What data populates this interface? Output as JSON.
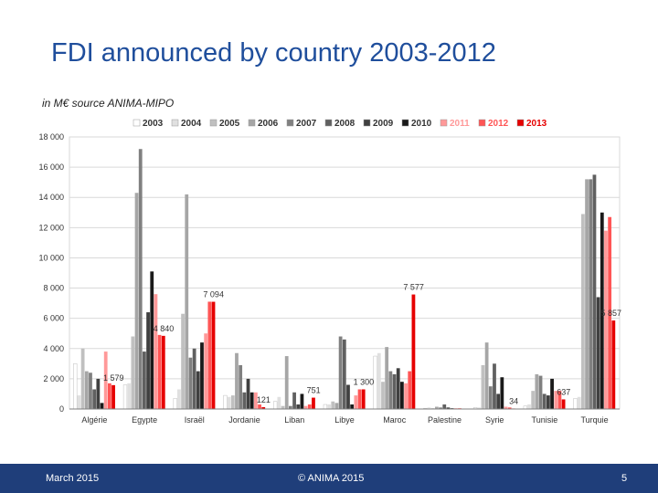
{
  "slide": {
    "title": "FDI announced by country 2003-2012",
    "subtitle": "in M€ source ANIMA-MIPO"
  },
  "footer": {
    "date": "March 2015",
    "copyright": "© ANIMA 2015",
    "page_number": "5"
  },
  "chart_data": {
    "type": "bar",
    "title": "",
    "xlabel": "",
    "ylabel": "",
    "ylim": [
      0,
      18000
    ],
    "yticks": [
      0,
      2000,
      4000,
      6000,
      8000,
      10000,
      12000,
      14000,
      16000,
      18000
    ],
    "ytick_labels": [
      "0",
      "2 000",
      "4 000",
      "6 000",
      "8 000",
      "10 000",
      "12 000",
      "14 000",
      "16 000",
      "18 000"
    ],
    "grid": true,
    "legend": "top",
    "categories": [
      "Algérie",
      "Egypte",
      "Israël",
      "Jordanie",
      "Liban",
      "Libye",
      "Maroc",
      "Palestine",
      "Syrie",
      "Tunisie",
      "Turquie"
    ],
    "series": [
      {
        "name": "2003",
        "color": "#ffffff",
        "values": [
          3000,
          1600,
          700,
          900,
          500,
          300,
          3500,
          50,
          100,
          200,
          700
        ]
      },
      {
        "name": "2004",
        "color": "#e0e0e0",
        "values": [
          900,
          1700,
          1300,
          800,
          800,
          300,
          3700,
          100,
          100,
          300,
          800
        ]
      },
      {
        "name": "2005",
        "color": "#c0c0c0",
        "values": [
          4000,
          4800,
          6300,
          900,
          200,
          500,
          1800,
          50,
          2900,
          1200,
          12900
        ]
      },
      {
        "name": "2006",
        "color": "#a6a6a6",
        "values": [
          2500,
          14300,
          14200,
          3700,
          3500,
          400,
          4100,
          150,
          4400,
          2300,
          15200
        ]
      },
      {
        "name": "2007",
        "color": "#808080",
        "values": [
          2400,
          17200,
          3400,
          2900,
          200,
          4800,
          2500,
          100,
          1500,
          2200,
          15200
        ]
      },
      {
        "name": "2008",
        "color": "#606060",
        "values": [
          1300,
          3800,
          4000,
          1100,
          1100,
          4600,
          2300,
          300,
          3000,
          1000,
          15500
        ]
      },
      {
        "name": "2009",
        "color": "#404040",
        "values": [
          2000,
          6400,
          2500,
          2000,
          300,
          1600,
          2700,
          100,
          1000,
          900,
          7400
        ]
      },
      {
        "name": "2010",
        "color": "#1a1a1a",
        "values": [
          400,
          9100,
          4400,
          1100,
          1000,
          300,
          1800,
          50,
          2100,
          2000,
          13000
        ]
      },
      {
        "name": "2011",
        "color": "#ff9999",
        "values": [
          3800,
          7600,
          5000,
          1100,
          200,
          900,
          1700,
          50,
          150,
          1200,
          11800
        ]
      },
      {
        "name": "2012",
        "color": "#ff5555",
        "values": [
          1700,
          4900,
          7100,
          300,
          300,
          1300,
          2500,
          50,
          100,
          1200,
          12700
        ]
      },
      {
        "name": "2013",
        "color": "#e60000",
        "values": [
          1579,
          4840,
          7094,
          121,
          751,
          1300,
          7577,
          0,
          34,
          637,
          5857
        ]
      }
    ],
    "annotations": [
      {
        "category": "Algérie",
        "series": "2013",
        "text": "1 579"
      },
      {
        "category": "Egypte",
        "series": "2013",
        "text": "4 840"
      },
      {
        "category": "Israël",
        "series": "2013",
        "text": "7 094"
      },
      {
        "category": "Jordanie",
        "series": "2013",
        "text": "121"
      },
      {
        "category": "Liban",
        "series": "2013",
        "text": "751"
      },
      {
        "category": "Libye",
        "series": "2013",
        "text": "1 300"
      },
      {
        "category": "Maroc",
        "series": "2013",
        "text": "7 577"
      },
      {
        "category": "Syrie",
        "series": "2013",
        "text": "34"
      },
      {
        "category": "Tunisie",
        "series": "2013",
        "text": "637"
      },
      {
        "category": "Turquie",
        "series": "2013",
        "text": "5 857"
      }
    ]
  }
}
